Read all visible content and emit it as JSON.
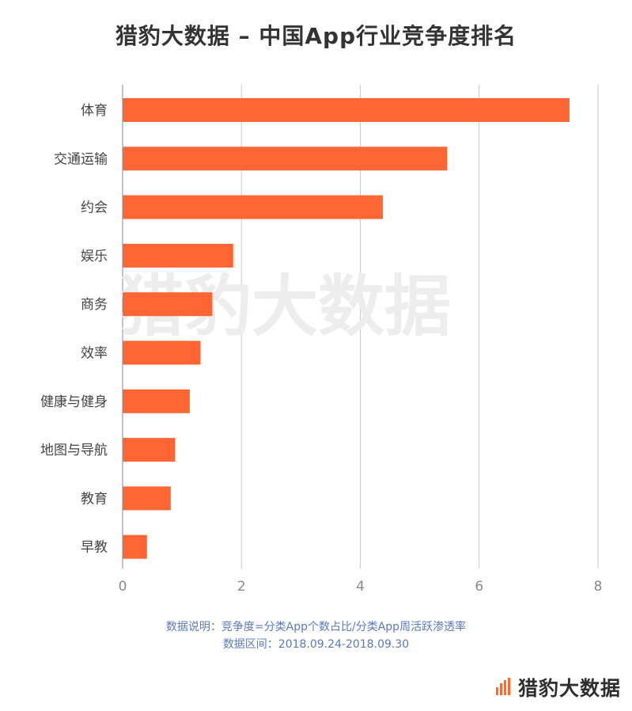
{
  "title": "猎豹大数据 – 中国App行业竞争度排名",
  "note_line1": "数据说明：竞争度=分类App个数占比/分类App周活跃渗透率",
  "note_line2": "数据区间：2018.09.24-2018.09.30",
  "watermark": "猎豹大数据",
  "logo_text": "猎豹大数据",
  "colors": {
    "bar": "#ff6633",
    "grid": "#c8c8c8",
    "tick": "#888888",
    "label": "#444444"
  },
  "chart_data": {
    "type": "bar",
    "orientation": "horizontal",
    "title": "猎豹大数据 – 中国App行业竞争度排名",
    "categories": [
      "体育",
      "交通运输",
      "约会",
      "娱乐",
      "商务",
      "效率",
      "健康与健身",
      "地图与导航",
      "教育",
      "早教"
    ],
    "values": [
      7.52,
      5.46,
      4.38,
      1.86,
      1.51,
      1.31,
      1.13,
      0.88,
      0.81,
      0.41
    ],
    "xlim": [
      0,
      8
    ],
    "xticks": [
      0,
      2,
      4,
      6,
      8
    ],
    "xlabel": "",
    "ylabel": "",
    "grid": true
  }
}
